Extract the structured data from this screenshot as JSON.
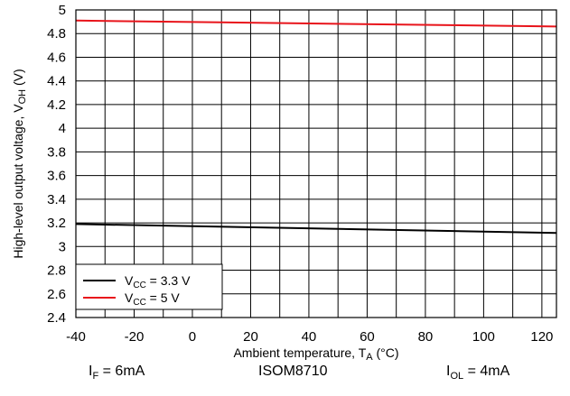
{
  "chart_data": {
    "type": "line",
    "xlabel": "Ambient temperature, T_A (°C)",
    "xlabel_main": "Ambient temperature, T",
    "xlabel_sub": "A",
    "xlabel_unit": " (°C)",
    "ylabel_main": "High-level output voltage, V",
    "ylabel_sub": "OH",
    "ylabel_unit": " (V)",
    "xlim": [
      -40,
      125
    ],
    "ylim": [
      2.4,
      5
    ],
    "x_ticks": [
      -40,
      -20,
      0,
      20,
      40,
      60,
      80,
      100,
      120
    ],
    "y_ticks": [
      2.4,
      2.6,
      2.8,
      3,
      3.2,
      3.4,
      3.6,
      3.8,
      4,
      4.2,
      4.4,
      4.6,
      4.8,
      5
    ],
    "y_tick_labels": [
      "2.4",
      "2.6",
      "2.8",
      "3",
      "3.2",
      "3.4",
      "3.6",
      "3.8",
      "4",
      "4.2",
      "4.4",
      "4.6",
      "4.8",
      "5"
    ],
    "grid": true,
    "x_minor_step": 10,
    "legend_position": "bottom-left",
    "series": [
      {
        "name": "VCC = 3.3 V",
        "name_main": "V",
        "name_sub": "CC",
        "name_rest": " = 3.3 V",
        "color": "#000000",
        "x": [
          -40,
          125
        ],
        "y": [
          3.19,
          3.115
        ]
      },
      {
        "name": "VCC = 5 V",
        "name_main": "V",
        "name_sub": "CC",
        "name_rest": " = 5 V",
        "color": "#e8141b",
        "x": [
          -40,
          125
        ],
        "y": [
          4.91,
          4.86
        ]
      }
    ]
  },
  "conditions": {
    "left_main": "I",
    "left_sub": "F",
    "left_rest": " = 6mA",
    "center": "ISOM8710",
    "right_main": "I",
    "right_sub": "OL",
    "right_rest": " = 4mA"
  }
}
